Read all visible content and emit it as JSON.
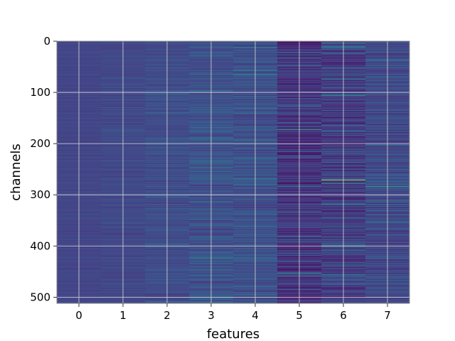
{
  "chart_data": {
    "type": "heatmap",
    "title": "",
    "xlabel": "features",
    "ylabel": "channels",
    "columns": [
      0,
      1,
      2,
      3,
      4,
      5,
      6,
      7
    ],
    "x_ticks": [
      "0",
      "1",
      "2",
      "3",
      "4",
      "5",
      "6",
      "7"
    ],
    "y_ticks": [
      "0",
      "100",
      "200",
      "300",
      "400",
      "500"
    ],
    "y_range": [
      0,
      512
    ],
    "rows": 512,
    "y_inverted": true,
    "grid": true,
    "colormap": "viridis",
    "column_base_value": [
      0.25,
      0.26,
      0.28,
      0.3,
      0.29,
      0.17,
      0.2,
      0.26
    ],
    "column_variability": [
      0.02,
      0.04,
      0.06,
      0.09,
      0.09,
      0.12,
      0.13,
      0.1
    ],
    "highlights": [
      {
        "feature": 6,
        "channel": 271,
        "value": 0.95
      },
      {
        "feature": 5,
        "channel": 172,
        "value": 0.75
      },
      {
        "feature": 6,
        "channel": 3,
        "value": 0.7
      },
      {
        "feature": 7,
        "channel": 283,
        "value": 0.7
      },
      {
        "feature": 5,
        "channel": 458,
        "value": 0.7
      },
      {
        "feature": 6,
        "channel": 90,
        "value": 0.62
      },
      {
        "feature": 4,
        "channel": 12,
        "value": 0.62
      },
      {
        "feature": 5,
        "channel": 334,
        "value": 0.65
      }
    ]
  },
  "colors": {
    "background": "#ffffff",
    "grid": "#d9d9d9",
    "axis": "#888888"
  }
}
